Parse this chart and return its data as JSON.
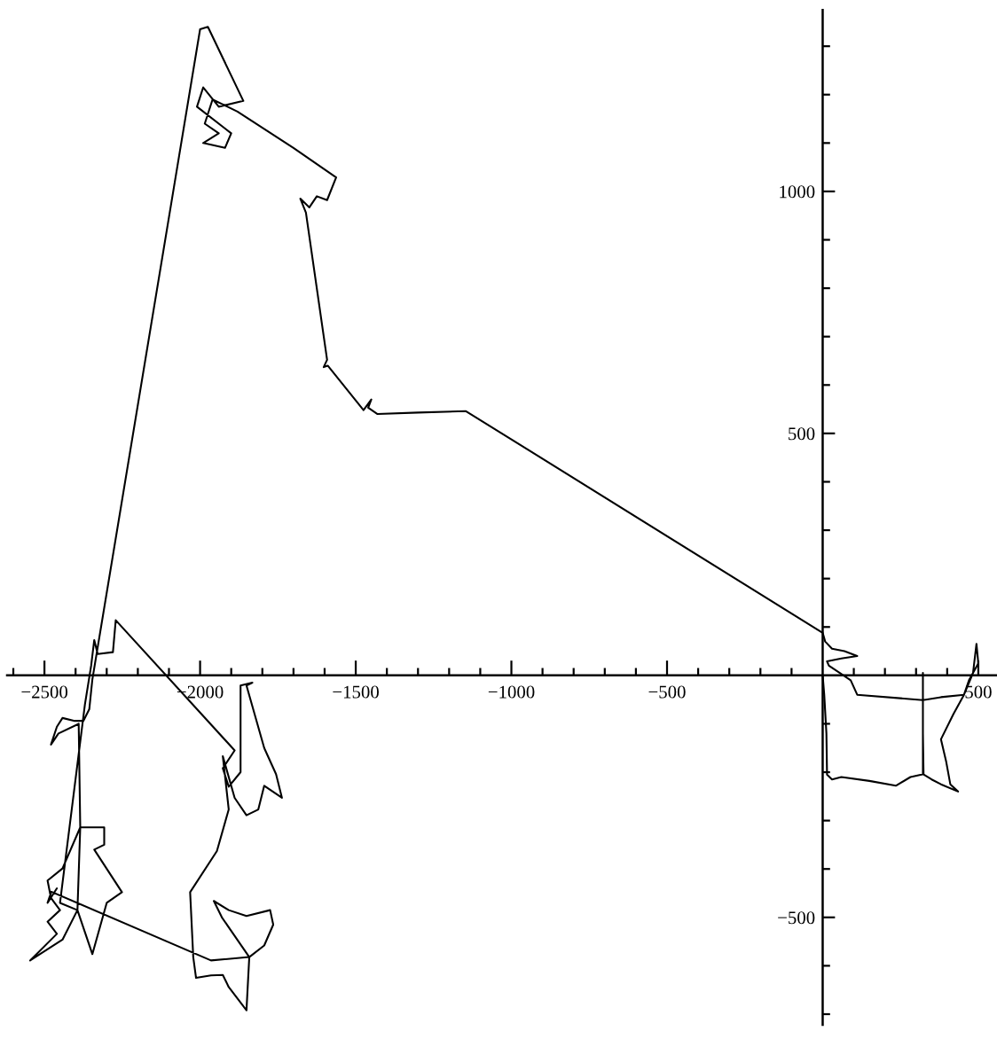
{
  "chart_data": {
    "type": "line",
    "series": [
      {
        "color": "#000000",
        "x": [
          0,
          5,
          12,
          14,
          30,
          60,
          150,
          235,
          282,
          324,
          322,
          322,
          322,
          322,
          350,
          380,
          435,
          410,
          397,
          380,
          420,
          454,
          483,
          494,
          500,
          470,
          454,
          380,
          322,
          111,
          90,
          20,
          14,
          60,
          111,
          70,
          30,
          8,
          0,
          -1146,
          -1300,
          -1430,
          -1460,
          -1450,
          -1475,
          -1590,
          -1603,
          -1592,
          -1660,
          -1678,
          -1649,
          -1625,
          -1592,
          -1563,
          -1700,
          -1880,
          -1960,
          -1985,
          -1940,
          -1990,
          -1920,
          -1900,
          -2010,
          -1990,
          -1940,
          -1861,
          -1975,
          -2000,
          -2346,
          -2356,
          -2375,
          -2403,
          -2442,
          -2460,
          -2479,
          -2455,
          -2390,
          -2385,
          -2442,
          -2490,
          -2479,
          -2450,
          -2490,
          -2460,
          -2546,
          -2442,
          -2394,
          -2385,
          -2346,
          -2308,
          -2308,
          -2340,
          -2251,
          -2300,
          -2346,
          -2394,
          -2450,
          -2370,
          -2350,
          -2340,
          -2329,
          -2280,
          -2271,
          -1889,
          -1927,
          -1908,
          -1870,
          -1870,
          -1832,
          -1851,
          -1794,
          -1756,
          -1737,
          -1794,
          -1813,
          -1851,
          -1889,
          -1927,
          -1908,
          -1946,
          -2032,
          -2022,
          -2013,
          -1965,
          -1927,
          -1908,
          -1851,
          -1842,
          -1794,
          -1765,
          -1775,
          -1851,
          -1908,
          -1956,
          -1930,
          -1842,
          -1965,
          -2478,
          -2490,
          -2460
        ],
        "values": [
          0,
          -40,
          -120,
          -205,
          -215,
          -210,
          -218,
          -228,
          -210,
          -204,
          -120,
          -51,
          5,
          -204,
          -215,
          -225,
          -240,
          -225,
          -179,
          -132,
          -80,
          -40,
          5,
          65,
          25,
          -10,
          -40,
          -45,
          -51,
          -40,
          -10,
          20,
          29,
          35,
          40,
          50,
          55,
          70,
          88,
          546,
          543,
          540,
          553,
          570,
          548,
          640,
          637,
          652,
          956,
          985,
          967,
          990,
          982,
          1029,
          1090,
          1165,
          1190,
          1140,
          1120,
          1100,
          1090,
          1120,
          1175,
          1215,
          1175,
          1187,
          1340,
          1335,
          -8,
          -70,
          -94,
          -94,
          -88,
          -106,
          -143,
          -120,
          -100,
          -314,
          -399,
          -424,
          -460,
          -485,
          -509,
          -534,
          -589,
          -546,
          -485,
          -314,
          -314,
          -314,
          -350,
          -360,
          -448,
          -470,
          -576,
          -485,
          -470,
          -60,
          20,
          73,
          44,
          48,
          114,
          -155,
          -192,
          -230,
          -200,
          -21,
          -15,
          -21,
          -150,
          -204,
          -253,
          -228,
          -277,
          -289,
          -253,
          -167,
          -277,
          -363,
          -448,
          -582,
          -625,
          -620,
          -619,
          -644,
          -692,
          -582,
          -558,
          -515,
          -485,
          -497,
          -485,
          -466,
          -500,
          -582,
          -589,
          -447,
          -470,
          -440
        ]
      }
    ],
    "xlim": [
      -2620,
      560
    ],
    "ylim": [
      -722,
      1375
    ],
    "xticks": [
      {
        "value": -2600,
        "label": null
      },
      {
        "value": -2500,
        "label": "−2500"
      },
      {
        "value": -2400,
        "label": null
      },
      {
        "value": -2300,
        "label": null
      },
      {
        "value": -2200,
        "label": null
      },
      {
        "value": -2100,
        "label": null
      },
      {
        "value": -2000,
        "label": "−2000"
      },
      {
        "value": -1900,
        "label": null
      },
      {
        "value": -1800,
        "label": null
      },
      {
        "value": -1700,
        "label": null
      },
      {
        "value": -1600,
        "label": null
      },
      {
        "value": -1500,
        "label": "−1500"
      },
      {
        "value": -1400,
        "label": null
      },
      {
        "value": -1300,
        "label": null
      },
      {
        "value": -1200,
        "label": null
      },
      {
        "value": -1100,
        "label": null
      },
      {
        "value": -1000,
        "label": "−1000"
      },
      {
        "value": -900,
        "label": null
      },
      {
        "value": -800,
        "label": null
      },
      {
        "value": -700,
        "label": null
      },
      {
        "value": -600,
        "label": null
      },
      {
        "value": -500,
        "label": "−500"
      },
      {
        "value": -400,
        "label": null
      },
      {
        "value": -300,
        "label": null
      },
      {
        "value": -200,
        "label": null
      },
      {
        "value": -100,
        "label": null
      },
      {
        "value": 100,
        "label": null
      },
      {
        "value": 200,
        "label": null
      },
      {
        "value": 300,
        "label": null
      },
      {
        "value": 400,
        "label": null
      },
      500
    ],
    "yticks": [
      {
        "value": -700,
        "label": null
      },
      {
        "value": -600,
        "label": null
      },
      {
        "value": -500,
        "label": "−500"
      },
      {
        "value": -400,
        "label": null
      },
      {
        "value": -300,
        "label": null
      },
      {
        "value": -200,
        "label": null
      },
      {
        "value": -100,
        "label": null
      },
      {
        "value": 100,
        "label": null
      },
      {
        "value": 200,
        "label": null
      },
      {
        "value": 300,
        "label": null
      },
      {
        "value": 400,
        "label": null
      },
      500,
      {
        "value": 600,
        "label": null
      },
      {
        "value": 700,
        "label": null
      },
      {
        "value": 800,
        "label": null
      },
      {
        "value": 900,
        "label": null
      },
      1000,
      {
        "value": 1100,
        "label": null
      },
      {
        "value": 1200,
        "label": null
      },
      {
        "value": 1300,
        "label": null
      }
    ]
  }
}
